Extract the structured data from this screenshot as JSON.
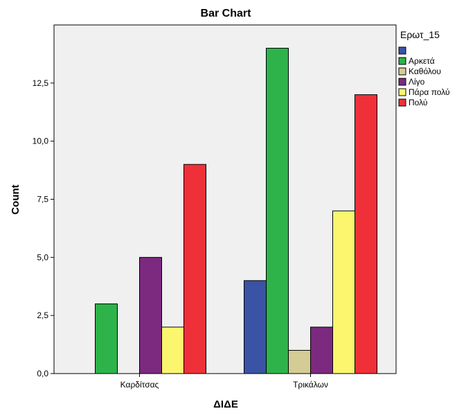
{
  "chart_data": {
    "type": "bar",
    "title": "Bar Chart",
    "xlabel": "ΔΙΔΕ",
    "ylabel": "Count",
    "categories": [
      "Καρδίτσας",
      "Τρικάλων"
    ],
    "ylim": [
      0,
      15
    ],
    "yticks": [
      "0,0",
      "2,5",
      "5,0",
      "7,5",
      "10,0",
      "12,5"
    ],
    "ytick_values": [
      0,
      2.5,
      5,
      7.5,
      10,
      12.5
    ],
    "legend_title": "Ερωτ_15",
    "legend_position": "right",
    "series": [
      {
        "name": "",
        "color": "#3a53a4",
        "values": [
          0,
          4
        ]
      },
      {
        "name": "Αρκετά",
        "color": "#2db34a",
        "values": [
          3,
          14
        ]
      },
      {
        "name": "Καθόλου",
        "color": "#d4cc94",
        "values": [
          0,
          1
        ]
      },
      {
        "name": "Λίγο",
        "color": "#7b2a80",
        "values": [
          5,
          2
        ]
      },
      {
        "name": "Πάρα πολύ",
        "color": "#fbf66e",
        "values": [
          2,
          7
        ]
      },
      {
        "name": "Πολύ",
        "color": "#ef3039",
        "values": [
          9,
          12
        ]
      }
    ],
    "plot_background": "#f0f0f0"
  }
}
